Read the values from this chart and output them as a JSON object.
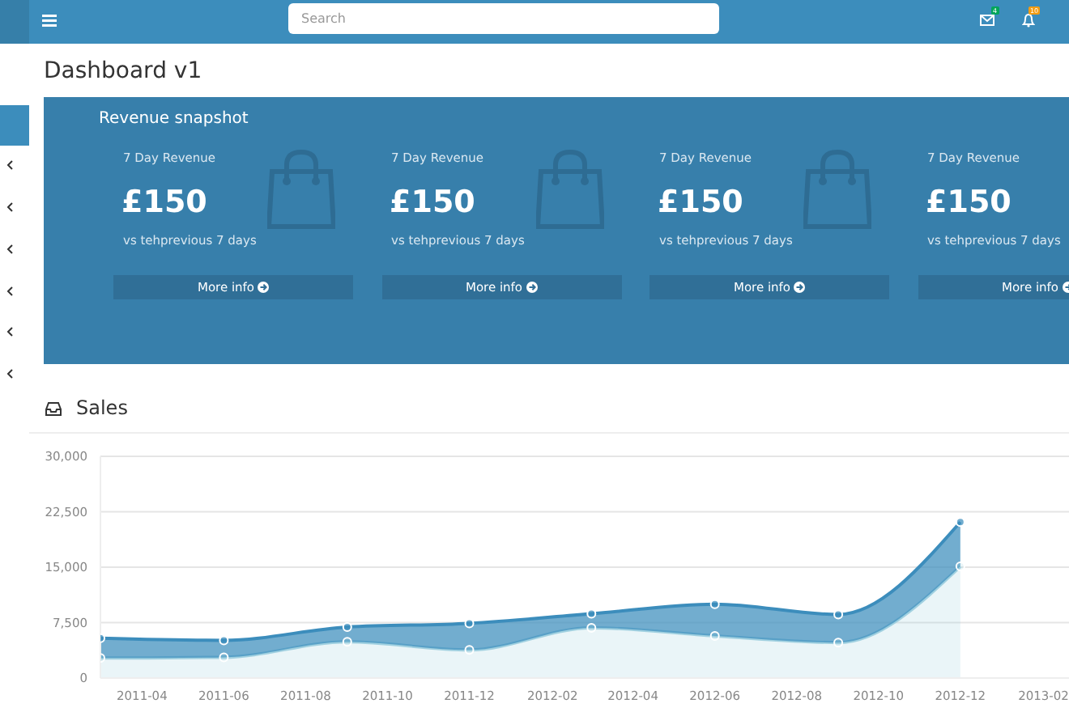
{
  "chart_data": [
    {
      "type": "other",
      "title": "Dashboard v1",
      "annotations": [
        "Search",
        "4",
        "10"
      ]
    },
    {
      "type": "other",
      "title": "Revenue snapshot",
      "annotations": [
        "7 Day Revenue",
        "£150",
        "vs tehprevious 7 days",
        "More info",
        "7 Day Revenue",
        "£150",
        "vs tehprevious 7 days",
        "More info",
        "7 Day Revenue",
        "£150",
        "vs tehprevious 7 days",
        "More info",
        "7 Day Revenue",
        "£150",
        "vs tehprevious 7 days",
        "More info"
      ]
    },
    {
      "type": "area",
      "title": "Sales",
      "stacked": true,
      "marker": "circle",
      "grid": "y",
      "x": [
        "2011-03",
        "2011-06",
        "2011-09",
        "2011-12",
        "2012-03",
        "2012-06",
        "2012-09",
        "2012-12"
      ],
      "series": [
        {
          "color": "#a0d0e0",
          "values": [
            2700,
            2800,
            4900,
            3800,
            6800,
            5700,
            4800,
            15100
          ]
        },
        {
          "color": "#3c8dbc",
          "values": [
            2700,
            2300,
            2000,
            3600,
            1900,
            4300,
            3800,
            6000
          ]
        }
      ],
      "xlim": [
        "2011-03",
        "2013-02-20"
      ],
      "xticks": [
        "2011-04",
        "2011-06",
        "2011-08",
        "2011-10",
        "2011-12",
        "2012-02",
        "2012-04",
        "2012-06",
        "2012-08",
        "2012-10",
        "2012-12",
        "2013-02"
      ],
      "ylim": [
        0,
        30000
      ],
      "yticks": [
        0,
        {
          "value": 7500,
          "label": "7,500"
        },
        {
          "value": 15000,
          "label": "15,000"
        },
        {
          "value": 22500,
          "label": "22,500"
        },
        {
          "value": 30000,
          "label": "30,000"
        }
      ]
    }
  ]
}
